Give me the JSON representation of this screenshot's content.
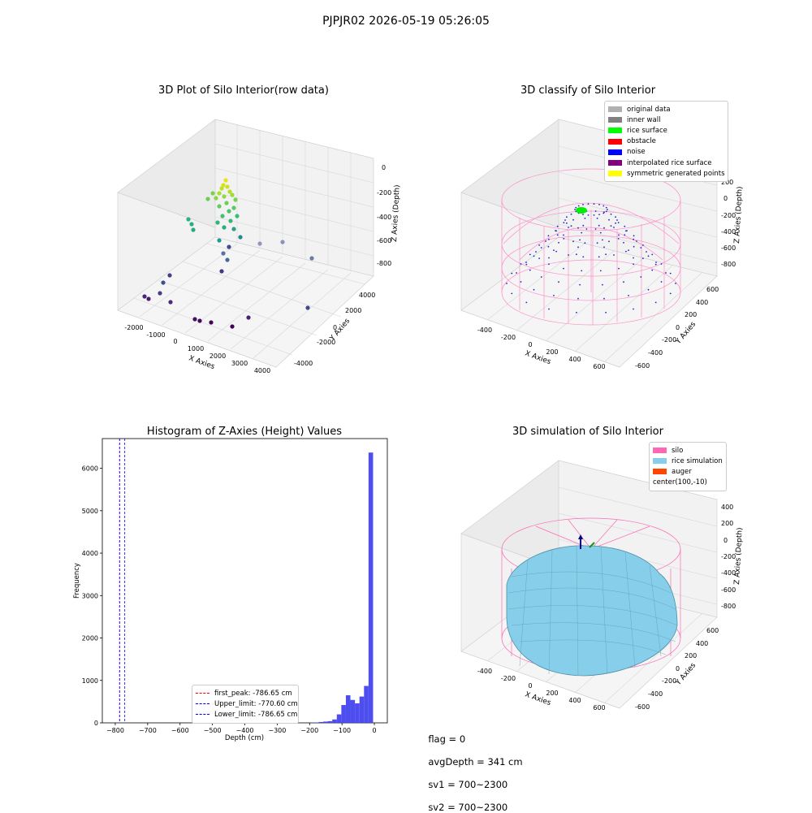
{
  "suptitle": "PJPJR02 2026-05-19 05:26:05",
  "footer": {
    "flag": "flag = 0",
    "avg": "avgDepth = 341 cm",
    "sv1": "sv1 = 700~2300",
    "sv2": "sv2 = 700~2300"
  },
  "panels": {
    "raw": {
      "title": "3D Plot of Silo Interior(row data)",
      "xlabel": "X Axies",
      "ylabel": "Y Axies",
      "zlabel": "Z Axies (Depth)",
      "xticks": [
        "-2000",
        "-1000",
        "0",
        "1000",
        "2000",
        "3000",
        "4000"
      ],
      "yticks": [
        "-4000",
        "-2000",
        "0",
        "2000",
        "4000"
      ],
      "zticks": [
        "0",
        "-200",
        "-400",
        "-600",
        "-800"
      ]
    },
    "classify": {
      "title": "3D classify of Silo Interior",
      "xlabel": "X Axies",
      "ylabel": "Y Axies",
      "zlabel": "Z Axies (Depth)",
      "xticks": [
        "-400",
        "-200",
        "0",
        "200",
        "400",
        "600"
      ],
      "yticks": [
        "-600",
        "-400",
        "-200",
        "0",
        "200",
        "400",
        "600"
      ],
      "zticks": [
        "200",
        "0",
        "-200",
        "-400",
        "-600",
        "-800"
      ],
      "legend": [
        {
          "label": "original data",
          "color": "#b0b0b0"
        },
        {
          "label": "inner wall",
          "color": "#808080"
        },
        {
          "label": "rice surface",
          "color": "#00ff00"
        },
        {
          "label": "obstacle",
          "color": "#ff0000"
        },
        {
          "label": "noise",
          "color": "#0000ff"
        },
        {
          "label": "interpolated rice surface",
          "color": "#800080"
        },
        {
          "label": "symmetric generated points",
          "color": "#ffff00"
        }
      ]
    },
    "simulation": {
      "title": "3D simulation of Silo Interior",
      "xlabel": "X Axies",
      "ylabel": "Y Axies",
      "zlabel": "Z Axies (Depth)",
      "xticks": [
        "-400",
        "-200",
        "0",
        "200",
        "400",
        "600"
      ],
      "yticks": [
        "-600",
        "-400",
        "-200",
        "0",
        "200",
        "400",
        "600"
      ],
      "zticks": [
        "400",
        "200",
        "0",
        "-200",
        "-400",
        "-600",
        "-800"
      ],
      "legend": [
        {
          "label": "silo",
          "color": "#ff69b4"
        },
        {
          "label": "rice simulation",
          "color": "#87ceeb"
        },
        {
          "label": "auger",
          "color": "#ff4500"
        },
        {
          "label": "center(100,-10)",
          "color": ""
        }
      ]
    }
  },
  "chart_data": [
    {
      "type": "scatter",
      "title": "3D Plot of Silo Interior(row data)",
      "xlabel": "X Axies",
      "ylabel": "Y Axies",
      "zlabel": "Z Axies (Depth)",
      "xlim": [
        -2500,
        4500
      ],
      "ylim": [
        -4500,
        4500
      ],
      "zlim": [
        -900,
        0
      ]
    },
    {
      "type": "scatter",
      "title": "3D classify of Silo Interior",
      "xlabel": "X Axies",
      "ylabel": "Y Axies",
      "zlabel": "Z Axies (Depth)",
      "xlim": [
        -500,
        700
      ],
      "ylim": [
        -700,
        700
      ],
      "zlim": [
        -900,
        300
      ]
    },
    {
      "type": "bar",
      "title": "Histogram of Z-Axies (Height) Values",
      "xlabel": "Depth (cm)",
      "ylabel": "Frequency",
      "xlim": [
        -840,
        40
      ],
      "ylim": [
        0,
        6700
      ],
      "xticks": [
        "−800",
        "−700",
        "−600",
        "−500",
        "−400",
        "−300",
        "−200",
        "−100",
        "0"
      ],
      "yticks": [
        "0",
        "1000",
        "2000",
        "3000",
        "4000",
        "5000",
        "6000"
      ],
      "bar_color": "#4444ee",
      "bins": [
        {
          "x0": -200,
          "x1": -186,
          "count": 5
        },
        {
          "x0": -186,
          "x1": -172,
          "count": 10
        },
        {
          "x0": -172,
          "x1": -158,
          "count": 20
        },
        {
          "x0": -158,
          "x1": -144,
          "count": 30
        },
        {
          "x0": -144,
          "x1": -130,
          "count": 40
        },
        {
          "x0": -130,
          "x1": -116,
          "count": 80
        },
        {
          "x0": -116,
          "x1": -102,
          "count": 200
        },
        {
          "x0": -102,
          "x1": -88,
          "count": 420
        },
        {
          "x0": -88,
          "x1": -74,
          "count": 650
        },
        {
          "x0": -74,
          "x1": -60,
          "count": 540
        },
        {
          "x0": -60,
          "x1": -46,
          "count": 460
        },
        {
          "x0": -46,
          "x1": -32,
          "count": 620
        },
        {
          "x0": -32,
          "x1": -18,
          "count": 870
        },
        {
          "x0": -18,
          "x1": -4,
          "count": 6370
        }
      ],
      "vlines": [
        {
          "label": "first_peak: -786.65 cm",
          "x": -786.65,
          "color": "#ff0000"
        },
        {
          "label": "Upper_limit: -770.60 cm",
          "x": -770.6,
          "color": "#0000ff"
        },
        {
          "label": "Lower_limit: -786.65 cm",
          "x": -786.65,
          "color": "#0000ff"
        }
      ],
      "legend_position": "lower-center"
    },
    {
      "type": "area",
      "title": "3D simulation of Silo Interior",
      "xlabel": "X Axies",
      "ylabel": "Y Axies",
      "zlabel": "Z Axies (Depth)",
      "xlim": [
        -500,
        700
      ],
      "ylim": [
        -700,
        700
      ],
      "zlim": [
        -900,
        500
      ]
    }
  ]
}
